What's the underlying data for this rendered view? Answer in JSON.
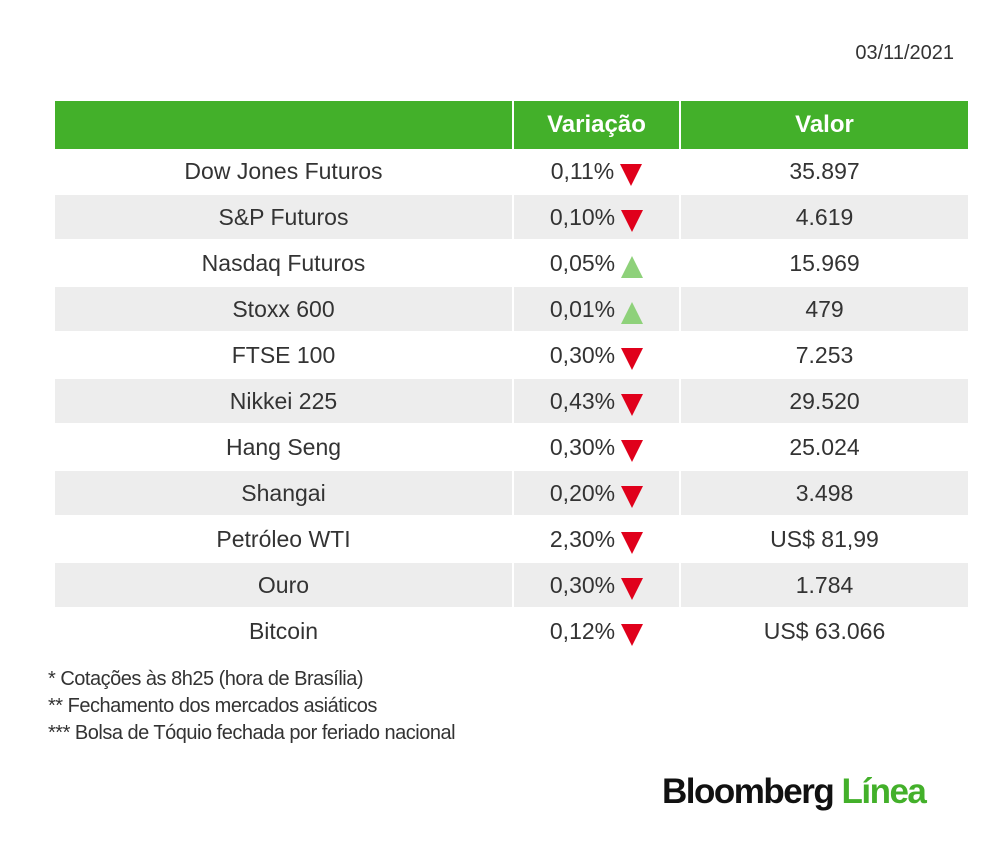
{
  "date": "03/11/2021",
  "headers": [
    "",
    "Variação",
    "Valor"
  ],
  "rows": [
    {
      "name": "Dow Jones Futuros",
      "change": "0,11%",
      "dir": "down",
      "value": "35.897"
    },
    {
      "name": "S&P Futuros",
      "change": "0,10%",
      "dir": "down",
      "value": "4.619"
    },
    {
      "name": "Nasdaq Futuros",
      "change": "0,05%",
      "dir": "up",
      "value": "15.969"
    },
    {
      "name": "Stoxx 600",
      "change": "0,01%",
      "dir": "up",
      "value": "479"
    },
    {
      "name": "FTSE 100",
      "change": "0,30%",
      "dir": "down",
      "value": "7.253"
    },
    {
      "name": "Nikkei 225",
      "change": "0,43%",
      "dir": "down",
      "value": "29.520"
    },
    {
      "name": "Hang Seng",
      "change": "0,30%",
      "dir": "down",
      "value": "25.024"
    },
    {
      "name": "Shangai",
      "change": "0,20%",
      "dir": "down",
      "value": "3.498"
    },
    {
      "name": "Petróleo WTI",
      "change": "2,30%",
      "dir": "down",
      "value": "US$ 81,99"
    },
    {
      "name": "Ouro",
      "change": "0,30%",
      "dir": "down",
      "value": "1.784"
    },
    {
      "name": "Bitcoin",
      "change": "0,12%",
      "dir": "down",
      "value": "US$ 63.066"
    }
  ],
  "notes": [
    "* Cotações às 8h25 (hora de Brasília)",
    "** Fechamento dos mercados asiáticos",
    "*** Bolsa de Tóquio fechada por feriado nacional"
  ],
  "logo": {
    "part1": "Bloomberg",
    "part2": "Línea"
  },
  "colors": {
    "header": "#43b02a",
    "down": "#e0001b",
    "up": "#8ed17a"
  }
}
